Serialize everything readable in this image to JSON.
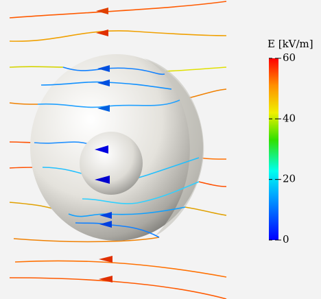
{
  "colorbar": {
    "title": "E [kV/m]",
    "range": [
      0,
      60
    ],
    "ticks": [
      0,
      20,
      40,
      60
    ]
  }
}
